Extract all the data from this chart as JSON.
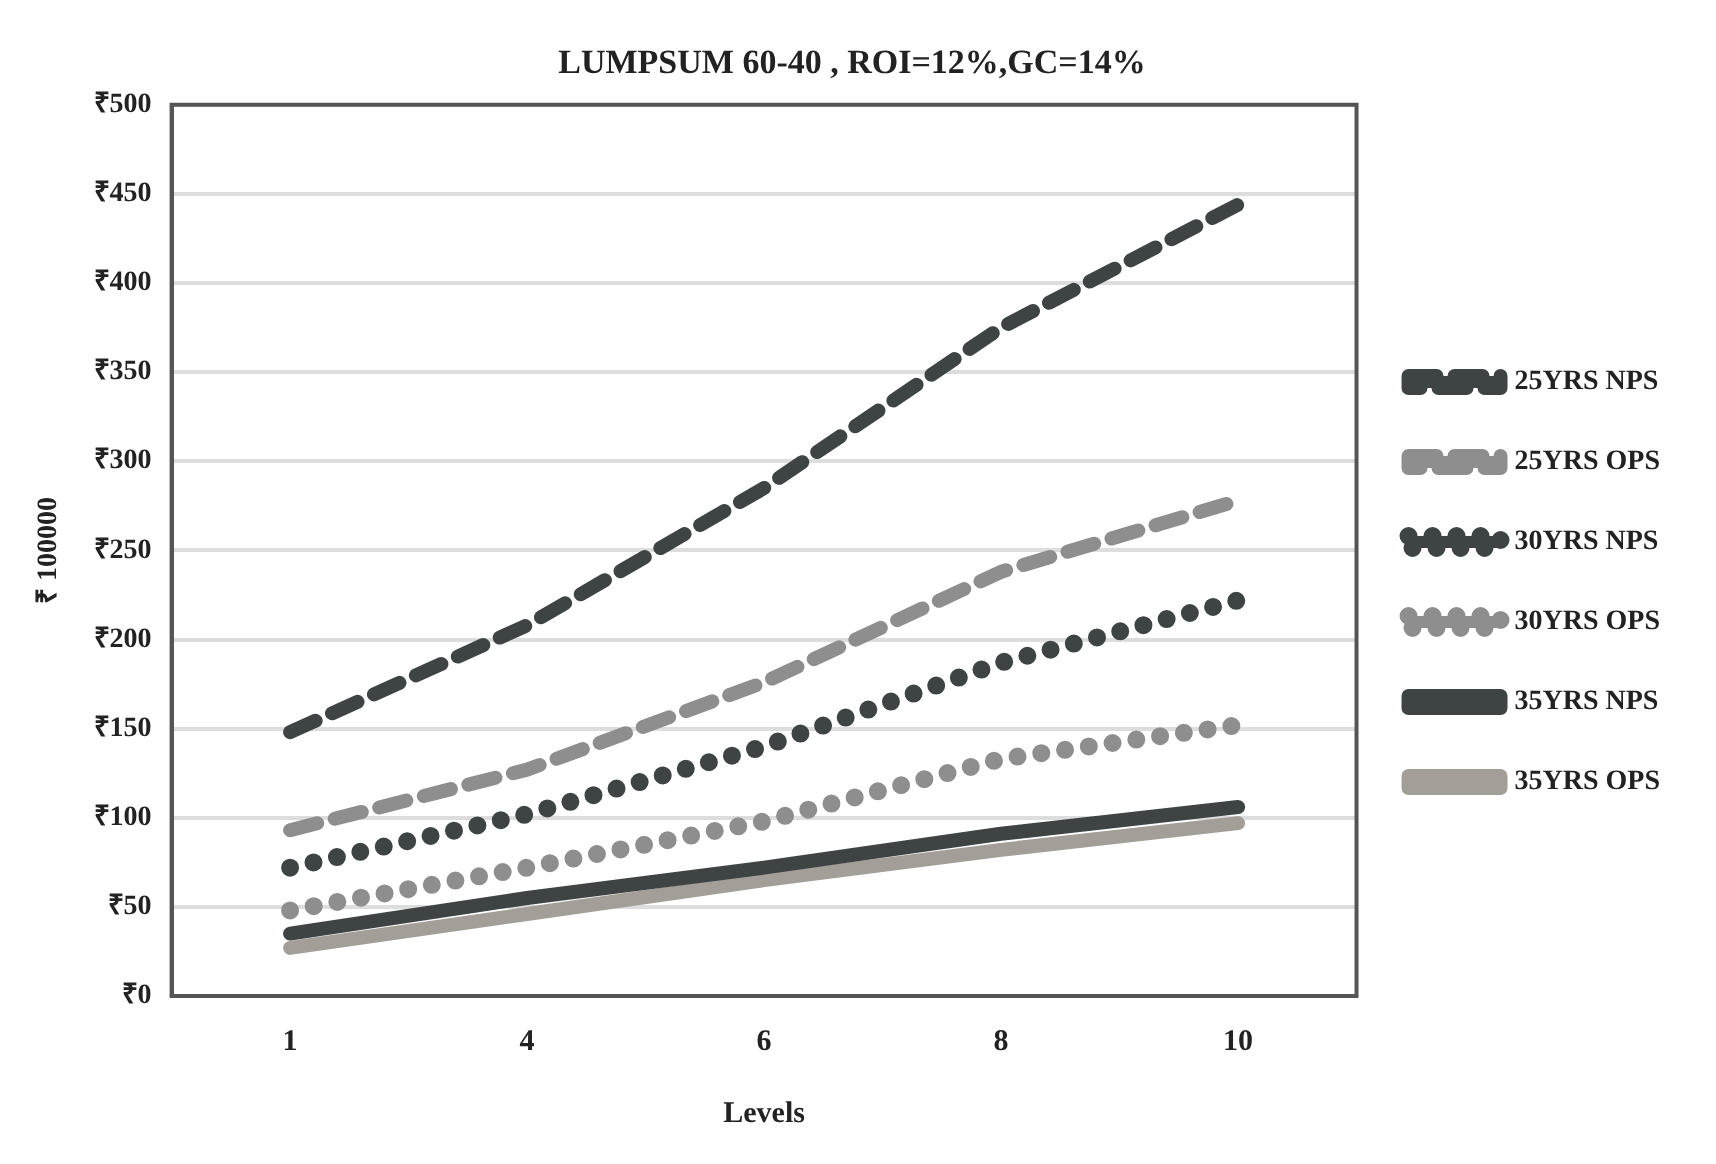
{
  "chart_data": {
    "type": "line",
    "title": "LUMPSUM 60-40 , ROI=12%,GC=14%",
    "xlabel": "Levels",
    "ylabel": "₹ 100000",
    "categories": [
      "1",
      "4",
      "6",
      "8",
      "10"
    ],
    "series": [
      {
        "name": "25YRS NPS",
        "color": "#3e4444",
        "line_style": "dashed",
        "values": [
          148,
          208,
          285,
          375,
          444
        ]
      },
      {
        "name": "25YRS OPS",
        "color": "#8e8e8e",
        "line_style": "dashed",
        "values": [
          93,
          127,
          176,
          238,
          278
        ]
      },
      {
        "name": "30YRS NPS",
        "color": "#3e4444",
        "line_style": "dotted",
        "values": [
          72,
          102,
          140,
          187,
          222
        ]
      },
      {
        "name": "30YRS OPS",
        "color": "#8e8e8e",
        "line_style": "dotted",
        "values": [
          48,
          72,
          98,
          133,
          152
        ]
      },
      {
        "name": "35YRS NPS",
        "color": "#3e4444",
        "line_style": "solid",
        "values": [
          35,
          55,
          72,
          91,
          106
        ]
      },
      {
        "name": "35YRS OPS",
        "color": "#a49e98",
        "line_style": "solid",
        "values": [
          27,
          46,
          65,
          82,
          97
        ]
      }
    ],
    "ylim": [
      0,
      500
    ],
    "yticks": [
      {
        "value": 0,
        "label": "₹0"
      },
      {
        "value": 50,
        "label": "₹50"
      },
      {
        "value": 100,
        "label": "₹100"
      },
      {
        "value": 150,
        "label": "₹150"
      },
      {
        "value": 200,
        "label": "₹200"
      },
      {
        "value": 250,
        "label": "₹250"
      },
      {
        "value": 300,
        "label": "₹300"
      },
      {
        "value": 350,
        "label": "₹350"
      },
      {
        "value": 400,
        "label": "₹400"
      },
      {
        "value": 450,
        "label": "₹450"
      },
      {
        "value": 500,
        "label": "₹500"
      }
    ],
    "grid": "y",
    "legend": "right",
    "marker": "none"
  }
}
